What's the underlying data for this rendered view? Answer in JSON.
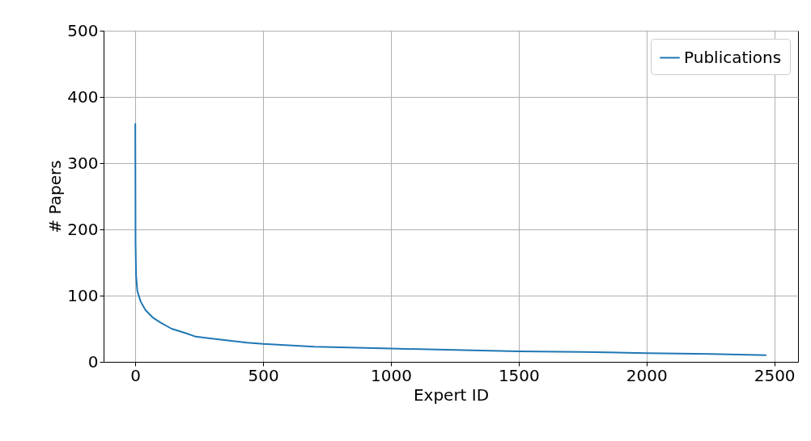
{
  "chart_data": {
    "type": "line",
    "xlabel": "Expert ID",
    "ylabel": "# Papers",
    "x": [
      0,
      1,
      3,
      8,
      21,
      40,
      68,
      100,
      142,
      200,
      237,
      300,
      437,
      500,
      700,
      1000,
      1250,
      1500,
      1750,
      2000,
      2250,
      2469
    ],
    "series": [
      {
        "name": "Publications",
        "color": "#1f77b4",
        "values": [
          360,
          180,
          131,
          107,
          91,
          78,
          67,
          59,
          50,
          43,
          38,
          35,
          29,
          27,
          23,
          20,
          18,
          16,
          15,
          13,
          12,
          10
        ]
      }
    ],
    "xlim": [
      -124,
      2593
    ],
    "ylim": [
      0,
      500
    ],
    "xticks": [
      0,
      500,
      1000,
      1500,
      2000,
      2500
    ],
    "yticks": [
      0,
      100,
      200,
      300,
      400,
      500
    ],
    "grid": true,
    "legend": "top right",
    "marker": "none",
    "line_style": "solid"
  }
}
